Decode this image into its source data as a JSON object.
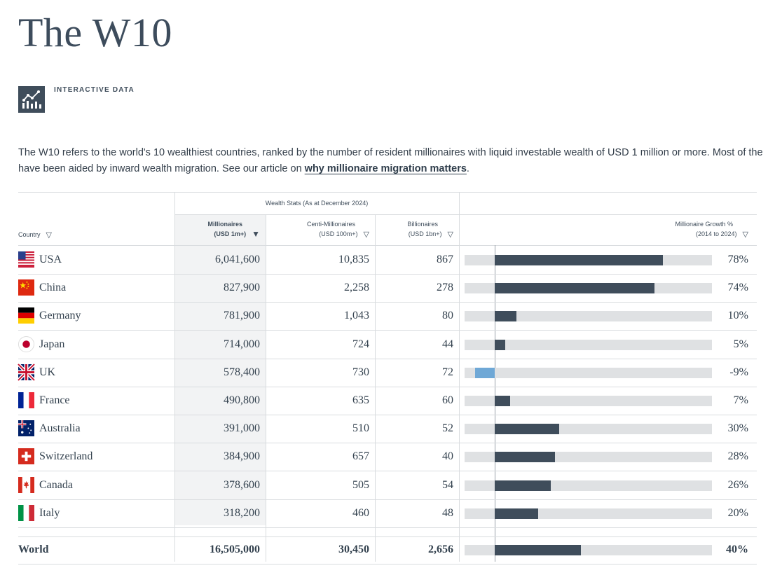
{
  "page": {
    "title": "The W10",
    "badge_label": "INTERACTIVE DATA",
    "badge_icon": "chart-analytics-icon",
    "intro_line1": "The W10 refers to the world's 10 wealthiest countries, ranked by the number of resident millionaires with liquid investable wealth of USD 1 million or more. Most of the",
    "intro_line2": "have been aided by inward wealth migration. See our article on ",
    "intro_link": "why millionaire migration matters",
    "intro_end": "."
  },
  "colors": {
    "positive_bar": "#3f4d5b",
    "negative_bar": "#6fa8d6",
    "track": "#dfe1e3"
  },
  "table": {
    "group_header": "Wealth Stats (As at December 2024)",
    "columns": {
      "country": "Country",
      "millionaires_l1": "Millionaires",
      "millionaires_l2": "(USD 1m+)",
      "centi_l1": "Centi-Millionaires",
      "centi_l2": "(USD 100m+)",
      "billion_l1": "Billionaires",
      "billion_l2": "(USD 1bn+)",
      "growth_l1": "Millionaire Growth %",
      "growth_l2": "(2014 to 2024)"
    },
    "rows": [
      {
        "country": "USA",
        "flag": "usa",
        "millionaires": "6,041,600",
        "centi": "10,835",
        "billionaires": "867",
        "growth_label": "78%",
        "growth": 78
      },
      {
        "country": "China",
        "flag": "china",
        "millionaires": "827,900",
        "centi": "2,258",
        "billionaires": "278",
        "growth_label": "74%",
        "growth": 74
      },
      {
        "country": "Germany",
        "flag": "germany",
        "millionaires": "781,900",
        "centi": "1,043",
        "billionaires": "80",
        "growth_label": "10%",
        "growth": 10
      },
      {
        "country": "Japan",
        "flag": "japan",
        "millionaires": "714,000",
        "centi": "724",
        "billionaires": "44",
        "growth_label": "5%",
        "growth": 5
      },
      {
        "country": "UK",
        "flag": "uk",
        "millionaires": "578,400",
        "centi": "730",
        "billionaires": "72",
        "growth_label": "-9%",
        "growth": -9
      },
      {
        "country": "France",
        "flag": "france",
        "millionaires": "490,800",
        "centi": "635",
        "billionaires": "60",
        "growth_label": "7%",
        "growth": 7
      },
      {
        "country": "Australia",
        "flag": "australia",
        "millionaires": "391,000",
        "centi": "510",
        "billionaires": "52",
        "growth_label": "30%",
        "growth": 30
      },
      {
        "country": "Switzerland",
        "flag": "switzerland",
        "millionaires": "384,900",
        "centi": "657",
        "billionaires": "40",
        "growth_label": "28%",
        "growth": 28
      },
      {
        "country": "Canada",
        "flag": "canada",
        "millionaires": "378,600",
        "centi": "505",
        "billionaires": "54",
        "growth_label": "26%",
        "growth": 26
      },
      {
        "country": "Italy",
        "flag": "italy",
        "millionaires": "318,200",
        "centi": "460",
        "billionaires": "48",
        "growth_label": "20%",
        "growth": 20
      }
    ],
    "world": {
      "country": "World",
      "millionaires": "16,505,000",
      "centi": "30,450",
      "billionaires": "2,656",
      "growth_label": "40%",
      "growth": 40
    }
  }
}
